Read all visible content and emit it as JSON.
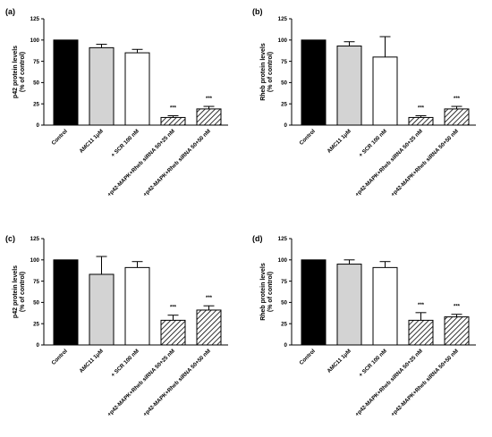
{
  "chart_data": [
    {
      "type": "bar",
      "panel_label": "(a)",
      "ylabel": [
        "p42 protein levels",
        "(% of control)"
      ],
      "ylim": [
        0,
        125
      ],
      "yticks": [
        0,
        25,
        50,
        75,
        100,
        125
      ],
      "categories": [
        "Control",
        "AMC11 1μM",
        "+ SCR 100 nM",
        "+p42-MAPK+Rheb siRNA 50+25 nM",
        "+p42-MAPK+Rheb siRNA 50+50 nM"
      ],
      "values": [
        100,
        91,
        85,
        9,
        19
      ],
      "errors": [
        0,
        4,
        4,
        2,
        3
      ],
      "significance": [
        "",
        "",
        "",
        "***",
        "***"
      ],
      "bar_fills": [
        "black",
        "lightgray",
        "white",
        "hatched",
        "hatched"
      ]
    },
    {
      "type": "bar",
      "panel_label": "(b)",
      "ylabel": [
        "Rheb protein levels",
        "(% of control)"
      ],
      "ylim": [
        0,
        125
      ],
      "yticks": [
        0,
        25,
        50,
        75,
        100,
        125
      ],
      "categories": [
        "Control",
        "AMC11 1μM",
        "+ SCR 100 nM",
        "+p42-MAPK+Rheb siRNA 50+25 nM",
        "+p42-MAPK+Rheb siRNA 50+50 nM"
      ],
      "values": [
        100,
        93,
        80,
        9,
        19
      ],
      "errors": [
        0,
        5,
        24,
        2,
        3
      ],
      "significance": [
        "",
        "",
        "",
        "***",
        "***"
      ],
      "bar_fills": [
        "black",
        "lightgray",
        "white",
        "hatched",
        "hatched"
      ]
    },
    {
      "type": "bar",
      "panel_label": "(c)",
      "ylabel": [
        "p42 protein levels",
        "(% of control)"
      ],
      "ylim": [
        0,
        125
      ],
      "yticks": [
        0,
        25,
        50,
        75,
        100,
        125
      ],
      "categories": [
        "Control",
        "AMC11 1μM",
        "+ SCR 100 nM",
        "+p42-MAPK+Rheb siRNA 50+25 nM",
        "+p42-MAPK+Rheb siRNA 50+50 nM"
      ],
      "values": [
        100,
        83,
        91,
        29,
        41
      ],
      "errors": [
        0,
        21,
        7,
        6,
        5
      ],
      "significance": [
        "",
        "",
        "",
        "***",
        "***"
      ],
      "bar_fills": [
        "black",
        "lightgray",
        "white",
        "hatched",
        "hatched"
      ]
    },
    {
      "type": "bar",
      "panel_label": "(d)",
      "ylabel": [
        "Rheb protein levels",
        "(% of control)"
      ],
      "ylim": [
        0,
        125
      ],
      "yticks": [
        0,
        25,
        50,
        75,
        100,
        125
      ],
      "categories": [
        "Control",
        "AMC11 1μM",
        "+ SCR 100 nM",
        "+p42-MAPK+Rheb siRNA 50+25 nM",
        "+p42-MAPK+Rheb siRNA 50+50 nM"
      ],
      "values": [
        100,
        95,
        91,
        29,
        33
      ],
      "errors": [
        0,
        5,
        7,
        9,
        3
      ],
      "significance": [
        "",
        "",
        "",
        "***",
        "***"
      ],
      "bar_fills": [
        "black",
        "lightgray",
        "white",
        "hatched",
        "hatched"
      ]
    }
  ],
  "colors": {
    "black_bar": "#000000",
    "gray_bar": "#d3d3d3",
    "white_bar": "#ffffff",
    "hatch": "#000000"
  }
}
